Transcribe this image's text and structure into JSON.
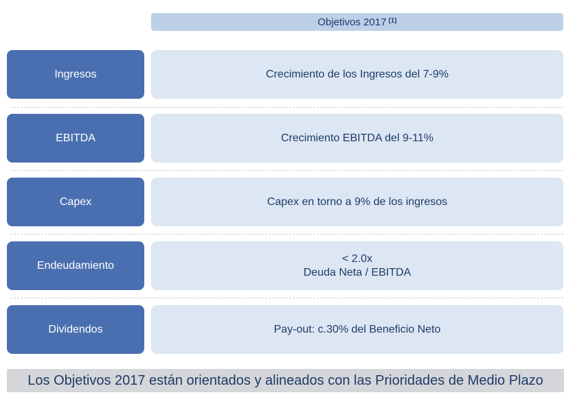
{
  "header": {
    "title": "Objetivos 2017",
    "footnote_marker": "(1)"
  },
  "rows": [
    {
      "label": "Ingresos",
      "value_lines": [
        "Crecimiento de los Ingresos del 7-9%"
      ]
    },
    {
      "label": "EBITDA",
      "value_lines": [
        "Crecimiento EBITDA del 9-11%"
      ]
    },
    {
      "label": "Capex",
      "value_lines": [
        "Capex en torno a 9% de los ingresos"
      ]
    },
    {
      "label": "Endeudamiento",
      "value_lines": [
        "< 2.0x",
        "Deuda Neta / EBITDA"
      ]
    },
    {
      "label": "Dividendos",
      "value_lines": [
        "Pay-out: c.30% del Beneficio Neto"
      ]
    }
  ],
  "footer": {
    "text": "Los Objetivos 2017 están orientados y alineados con las Prioridades de Medio Plazo"
  },
  "colors": {
    "label_fill": "#4a6fb0",
    "value_fill": "#dce7f3",
    "header_fill": "#bdd0e8",
    "footer_fill": "#d4d6d9",
    "text_dark": "#1f3a68"
  }
}
